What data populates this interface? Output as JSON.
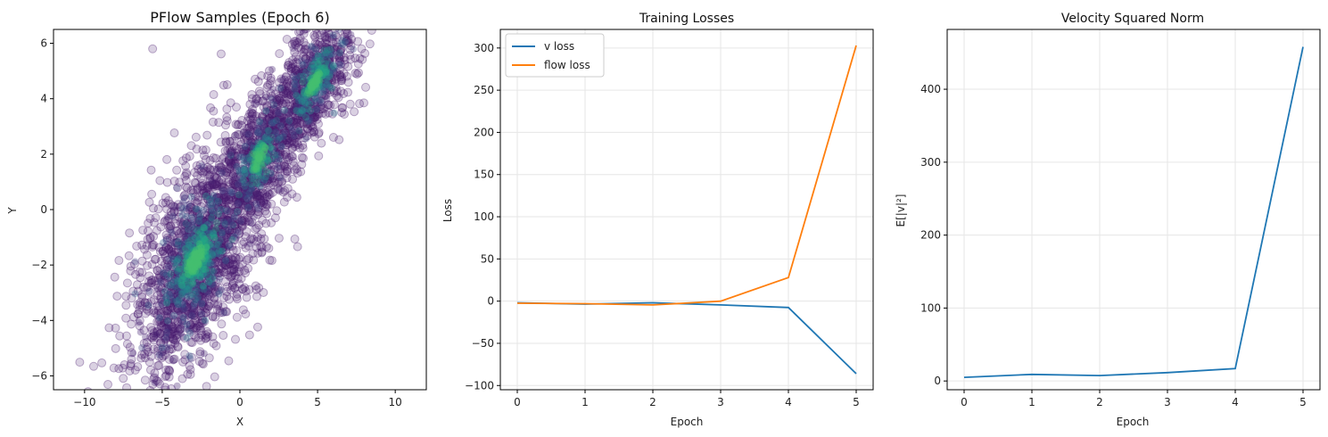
{
  "colors": {
    "v_loss": "#1f77b4",
    "flow_loss": "#ff7f0e",
    "scatter": "#481a6c",
    "grid": "#e6e6e6"
  },
  "chart_data": [
    {
      "type": "scatter",
      "title": "PFlow Samples (Epoch 6)",
      "xlabel": "X",
      "ylabel": "Y",
      "xlim": [
        -12,
        12
      ],
      "ylim": [
        -6.5,
        6.5
      ],
      "xticks": [
        -10,
        -5,
        0,
        5,
        10
      ],
      "yticks": [
        -6,
        -4,
        -2,
        0,
        2,
        4,
        6
      ],
      "grid": false,
      "point_opacity": 0.2,
      "density_coloring": "viridis",
      "clusters": [
        {
          "cx": 4.8,
          "cy": 4.6,
          "sx": 1.6,
          "sy": 1.1,
          "weight": 0.25
        },
        {
          "cx": -2.8,
          "cy": -1.8,
          "sx": 2.2,
          "sy": 1.8,
          "weight": 0.55
        },
        {
          "cx": 1.2,
          "cy": 1.8,
          "sx": 1.5,
          "sy": 1.3,
          "weight": 0.2
        }
      ],
      "correlation_slope": 0.62
    },
    {
      "type": "line",
      "title": "Training Losses",
      "xlabel": "Epoch",
      "ylabel": "Loss",
      "x": [
        0,
        1,
        2,
        3,
        4,
        5
      ],
      "xlim": [
        -0.25,
        5.25
      ],
      "ylim": [
        -105,
        322
      ],
      "xticks": [
        0,
        1,
        2,
        3,
        4,
        5
      ],
      "yticks": [
        -100,
        -50,
        0,
        50,
        100,
        150,
        200,
        250,
        300
      ],
      "grid": true,
      "legend": "upper-left",
      "series": [
        {
          "name": "v loss",
          "values": [
            -2,
            -3.5,
            -2,
            -4.5,
            -7.5,
            -86
          ]
        },
        {
          "name": "flow loss",
          "values": [
            -2.5,
            -3,
            -4.5,
            0,
            28,
            303
          ]
        }
      ]
    },
    {
      "type": "line",
      "title": "Velocity Squared Norm",
      "xlabel": "Epoch",
      "ylabel": "E[|v|²]",
      "x": [
        0,
        1,
        2,
        3,
        4,
        5
      ],
      "xlim": [
        -0.25,
        5.25
      ],
      "ylim": [
        -12,
        482
      ],
      "xticks": [
        0,
        1,
        2,
        3,
        4,
        5
      ],
      "yticks": [
        0,
        100,
        200,
        300,
        400
      ],
      "grid": true,
      "series": [
        {
          "values": [
            5,
            9,
            7.5,
            11.5,
            17,
            458
          ]
        }
      ]
    }
  ]
}
